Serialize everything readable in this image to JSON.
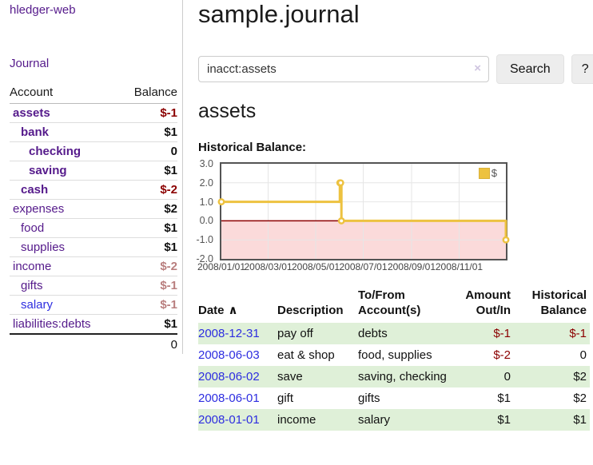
{
  "sidebar": {
    "brand": "hledger-web",
    "nav": {
      "journal": "Journal"
    },
    "table_headers": {
      "account": "Account",
      "balance": "Balance"
    },
    "accounts": [
      {
        "name": "assets",
        "balance": "$-1",
        "level": 0,
        "bold": true,
        "name_color": "purple",
        "balance_color": "negative"
      },
      {
        "name": "bank",
        "balance": "$1",
        "level": 1,
        "bold": true,
        "name_color": "purple",
        "balance_color": "normal"
      },
      {
        "name": "checking",
        "balance": "0",
        "level": 2,
        "bold": true,
        "name_color": "purple",
        "balance_color": "normal"
      },
      {
        "name": "saving",
        "balance": "$1",
        "level": 2,
        "bold": true,
        "name_color": "purple",
        "balance_color": "normal"
      },
      {
        "name": "cash",
        "balance": "$-2",
        "level": 1,
        "bold": true,
        "name_color": "purple",
        "balance_color": "negative"
      },
      {
        "name": "expenses",
        "balance": "$2",
        "level": 0,
        "bold": false,
        "name_color": "purple",
        "balance_color": "normal"
      },
      {
        "name": "food",
        "balance": "$1",
        "level": 1,
        "bold": false,
        "name_color": "purple",
        "balance_color": "normal"
      },
      {
        "name": "supplies",
        "balance": "$1",
        "level": 1,
        "bold": false,
        "name_color": "purple",
        "balance_color": "normal"
      },
      {
        "name": "income",
        "balance": "$-2",
        "level": 0,
        "bold": false,
        "name_color": "purple",
        "balance_color": "negative-faded"
      },
      {
        "name": "gifts",
        "balance": "$-1",
        "level": 1,
        "bold": false,
        "name_color": "purple",
        "balance_color": "negative-faded"
      },
      {
        "name": "salary",
        "balance": "$-1",
        "level": 1,
        "bold": false,
        "name_color": "blue",
        "balance_color": "negative-faded"
      },
      {
        "name": "liabilities:debts",
        "balance": "$1",
        "level": 0,
        "bold": false,
        "name_color": "purple",
        "balance_color": "normal"
      }
    ],
    "total": "0"
  },
  "header": {
    "title": "sample.journal"
  },
  "search": {
    "value": "inacct:assets",
    "clear_icon": "×",
    "button": "Search",
    "help_button": "?"
  },
  "account_page": {
    "heading": "assets",
    "chart_label": "Historical Balance:"
  },
  "chart_data": {
    "type": "line",
    "title": "Historical Balance:",
    "series": [
      {
        "name": "$",
        "color": "#edc240",
        "step": true,
        "points": [
          [
            "2008-01-01",
            1
          ],
          [
            "2008-06-01",
            2
          ],
          [
            "2008-06-02",
            2
          ],
          [
            "2008-06-03",
            0
          ],
          [
            "2008-12-31",
            -1
          ]
        ]
      }
    ],
    "x_ticks": [
      "2008/01/01",
      "2008/03/01",
      "2008/05/01",
      "2008/07/01",
      "2008/09/01",
      "2008/11/01"
    ],
    "y_ticks": [
      3.0,
      2.0,
      1.0,
      0.0,
      -1.0,
      -2.0
    ],
    "xlim": [
      "2008-01-01",
      "2008-12-31"
    ],
    "ylim": [
      -2,
      3
    ],
    "grid": true,
    "legend_position": "top-right",
    "negative_region_color": "#fbdada",
    "zero_line_color": "#8b0000",
    "grid_color": "#e6e6e6",
    "border_color": "#545454"
  },
  "register": {
    "headers": {
      "date": "Date",
      "sort_icon": "∧",
      "description": "Description",
      "tofrom": "To/From Account(s)",
      "amount": "Amount Out/In",
      "balance": "Historical Balance"
    },
    "rows": [
      {
        "date": "2008-12-31",
        "description": "pay off",
        "accounts": "debts",
        "amount": "$-1",
        "amount_negative": true,
        "balance": "$-1",
        "balance_negative": true
      },
      {
        "date": "2008-06-03",
        "description": "eat & shop",
        "accounts": "food, supplies",
        "amount": "$-2",
        "amount_negative": true,
        "balance": "0",
        "balance_negative": false
      },
      {
        "date": "2008-06-02",
        "description": "save",
        "accounts": "saving, checking",
        "amount": "0",
        "amount_negative": false,
        "balance": "$2",
        "balance_negative": false
      },
      {
        "date": "2008-06-01",
        "description": "gift",
        "accounts": "gifts",
        "amount": "$1",
        "amount_negative": false,
        "balance": "$2",
        "balance_negative": false
      },
      {
        "date": "2008-01-01",
        "description": "income",
        "accounts": "salary",
        "amount": "$1",
        "amount_negative": false,
        "balance": "$1",
        "balance_negative": false
      }
    ]
  },
  "colors": {
    "link_purple": "#551a8b",
    "link_blue": "#2d2de0",
    "negative_red": "#8b0000",
    "negative_faded": "#b97f7f",
    "stripe_green": "#dff0d8",
    "chart_line_gold": "#edc240",
    "chart_negative_fill": "#fbdada"
  }
}
